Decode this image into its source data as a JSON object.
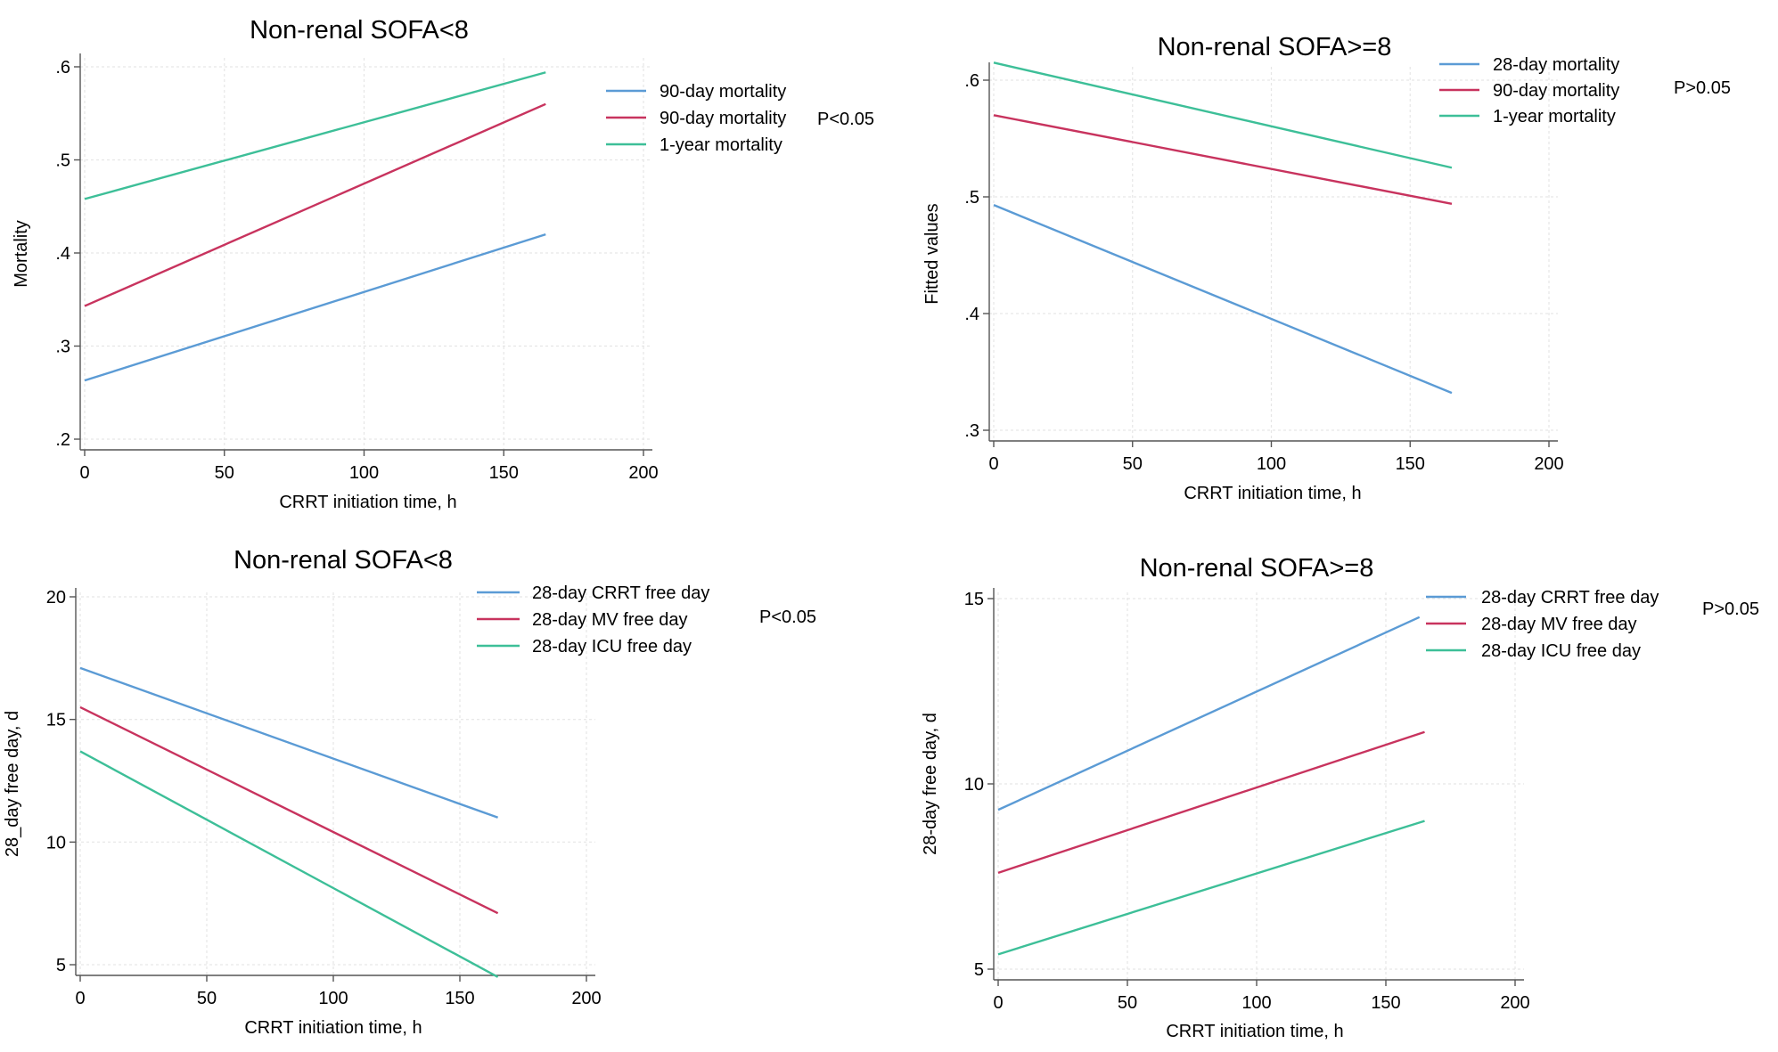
{
  "chart_data": [
    {
      "type": "line",
      "title": "Non-renal SOFA<8",
      "xlabel": "CRRT initiation time, h",
      "ylabel": "Mortality",
      "xlim": [
        0,
        200
      ],
      "ylim": [
        0.2,
        0.6
      ],
      "xticks": [
        0,
        50,
        100,
        150,
        200
      ],
      "xtick_labels": [
        "0",
        "50",
        "100",
        "150",
        "200"
      ],
      "yticks": [
        0.2,
        0.3,
        0.4,
        0.5,
        0.6
      ],
      "ytick_labels": [
        ".2",
        ".3",
        ".4",
        ".5",
        ".6"
      ],
      "p_text": "P<0.05",
      "grid": true,
      "legend_position": "right",
      "series": [
        {
          "name": "90-day mortality",
          "color": "#5b9bd5",
          "x": [
            0,
            165
          ],
          "y": [
            0.263,
            0.42
          ]
        },
        {
          "name": "90-day mortality",
          "color": "#c8335e",
          "x": [
            0,
            165
          ],
          "y": [
            0.343,
            0.56
          ]
        },
        {
          "name": "1-year mortality",
          "color": "#3dbf98",
          "x": [
            0,
            165
          ],
          "y": [
            0.458,
            0.594
          ]
        }
      ]
    },
    {
      "type": "line",
      "title": "Non-renal SOFA>=8",
      "xlabel": "CRRT initiation time, h",
      "ylabel": "Fitted values",
      "xlim": [
        0,
        200
      ],
      "ylim": [
        0.3,
        0.6
      ],
      "xticks": [
        0,
        50,
        100,
        150,
        200
      ],
      "xtick_labels": [
        "0",
        "50",
        "100",
        "150",
        "200"
      ],
      "yticks": [
        0.3,
        0.4,
        0.5,
        0.6
      ],
      "ytick_labels": [
        ".3",
        ".4",
        ".5",
        ".6"
      ],
      "p_text": "P>0.05",
      "grid": true,
      "legend_position": "top-right",
      "series": [
        {
          "name": "28-day mortality",
          "color": "#5b9bd5",
          "x": [
            0,
            165
          ],
          "y": [
            0.493,
            0.332
          ]
        },
        {
          "name": "90-day mortality",
          "color": "#c8335e",
          "x": [
            0,
            165
          ],
          "y": [
            0.57,
            0.494
          ]
        },
        {
          "name": "1-year mortality",
          "color": "#3dbf98",
          "x": [
            0,
            165
          ],
          "y": [
            0.615,
            0.525
          ]
        }
      ]
    },
    {
      "type": "line",
      "title": "Non-renal SOFA<8",
      "xlabel": "CRRT initiation time, h",
      "ylabel": "28_day free day, d",
      "xlim": [
        0,
        200
      ],
      "ylim": [
        5,
        20
      ],
      "xticks": [
        0,
        50,
        100,
        150,
        200
      ],
      "xtick_labels": [
        "0",
        "50",
        "100",
        "150",
        "200"
      ],
      "yticks": [
        5,
        10,
        15,
        20
      ],
      "ytick_labels": [
        "5",
        "10",
        "15",
        "20"
      ],
      "p_text": "P<0.05",
      "grid": true,
      "legend_position": "top-right",
      "series": [
        {
          "name": "28-day CRRT free day",
          "color": "#5b9bd5",
          "x": [
            0,
            165
          ],
          "y": [
            17.1,
            11.0
          ]
        },
        {
          "name": "28-day MV free day",
          "color": "#c8335e",
          "x": [
            0,
            165
          ],
          "y": [
            15.5,
            7.1
          ]
        },
        {
          "name": "28-day ICU free day",
          "color": "#3dbf98",
          "x": [
            0,
            165
          ],
          "y": [
            13.7,
            4.5
          ]
        }
      ]
    },
    {
      "type": "line",
      "title": "Non-renal SOFA>=8",
      "xlabel": "CRRT initiation time, h",
      "ylabel": "28-day free day, d",
      "xlim": [
        0,
        200
      ],
      "ylim": [
        5,
        15
      ],
      "xticks": [
        0,
        50,
        100,
        150,
        200
      ],
      "xtick_labels": [
        "0",
        "50",
        "100",
        "150",
        "200"
      ],
      "yticks": [
        5,
        10,
        15
      ],
      "ytick_labels": [
        "5",
        "10",
        "15"
      ],
      "p_text": "P>0.05",
      "grid": true,
      "legend_position": "top-right",
      "series": [
        {
          "name": "28-day CRRT free day",
          "color": "#5b9bd5",
          "x": [
            0,
            163
          ],
          "y": [
            9.3,
            14.5
          ]
        },
        {
          "name": "28-day MV free day",
          "color": "#c8335e",
          "x": [
            0,
            165
          ],
          "y": [
            7.6,
            11.4
          ]
        },
        {
          "name": "28-day ICU free day",
          "color": "#3dbf98",
          "x": [
            0,
            165
          ],
          "y": [
            5.4,
            9.0
          ]
        }
      ]
    }
  ]
}
